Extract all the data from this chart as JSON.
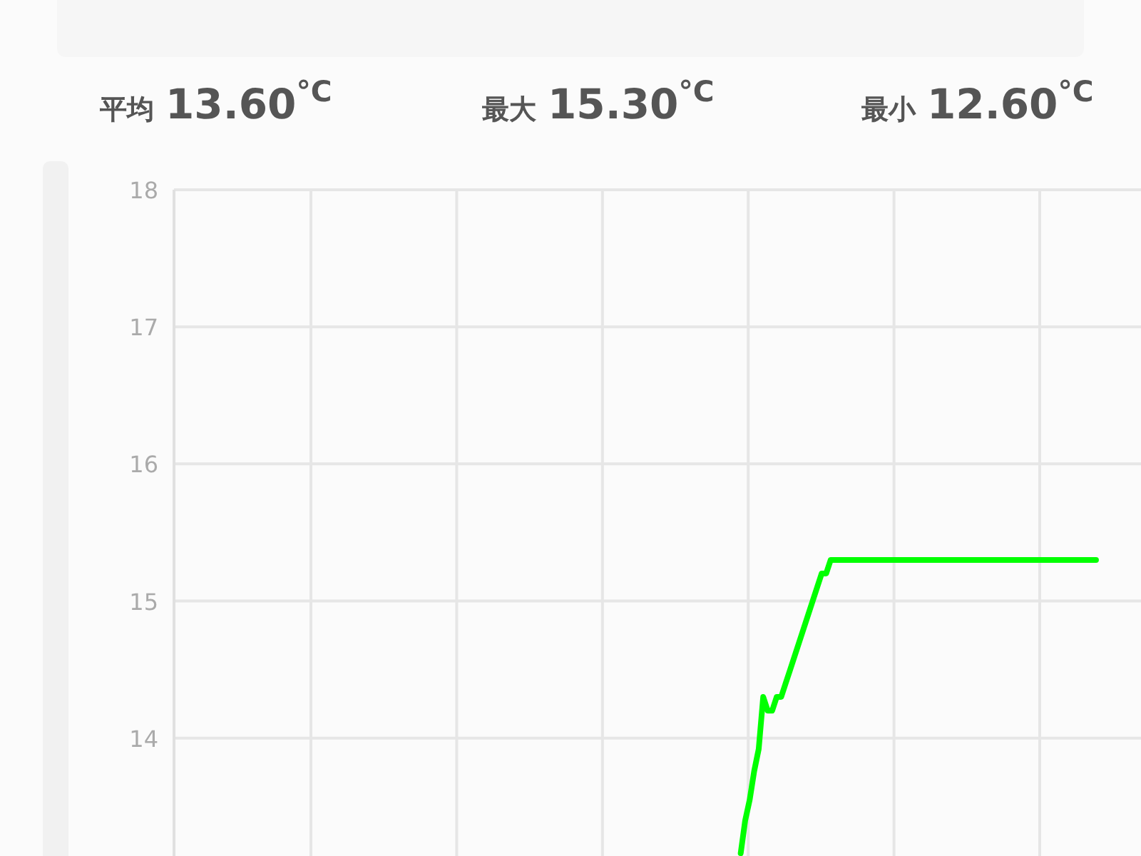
{
  "chart_data": {
    "type": "line",
    "annotations": [
      "平均 13.60$^{°C}$",
      "最大 15.30$^{°C}$",
      "最小 12.60$^{°C}$"
    ],
    "categories": [
      null,
      null,
      null,
      null,
      null,
      null,
      null,
      null,
      null,
      null,
      null,
      null,
      null,
      null,
      null,
      null,
      null,
      null,
      null,
      null,
      null,
      null,
      null,
      null,
      null,
      null,
      null,
      null,
      null,
      null,
      null,
      null,
      null,
      null,
      null,
      null,
      null,
      null,
      null,
      null,
      null,
      null,
      null,
      null,
      null,
      null,
      null,
      null,
      null,
      null,
      null,
      null,
      null,
      null,
      null,
      null,
      null,
      null,
      null,
      null,
      null,
      null,
      null,
      null,
      null,
      null,
      null,
      null,
      null,
      null,
      null,
      null,
      null,
      null,
      null,
      null,
      null,
      null,
      null,
      null,
      null,
      null,
      null,
      null,
      null,
      null,
      null,
      null,
      null,
      null,
      null,
      null,
      null,
      null,
      null,
      null,
      null,
      null,
      null,
      null,
      null,
      null,
      null,
      null,
      null,
      null,
      null,
      null,
      null,
      null,
      null,
      null,
      null,
      null,
      null,
      null,
      null,
      null,
      null,
      null,
      null,
      null,
      null,
      null,
      null,
      null,
      null,
      null,
      null,
      null,
      null,
      null,
      null,
      null,
      null,
      null,
      null,
      null,
      null,
      null,
      null,
      null,
      null,
      null,
      null,
      null,
      null,
      null,
      null,
      null,
      null,
      null,
      null,
      null,
      null,
      null,
      null,
      null,
      null,
      null,
      null,
      null,
      null,
      null,
      null,
      null,
      null,
      null,
      null,
      null,
      null,
      null,
      null,
      null,
      null,
      null,
      null,
      null,
      null,
      null,
      null,
      null,
      null,
      null,
      null,
      null,
      null,
      null,
      null,
      null,
      null,
      null,
      null,
      null,
      null,
      null,
      null,
      null,
      null,
      null,
      null,
      null,
      null,
      null,
      null,
      null,
      null,
      null,
      null,
      null,
      null,
      null,
      null,
      null,
      null,
      null
    ],
    "series": [
      {
        "color": "#00ff00",
        "values": [
          null,
          null,
          null,
          null,
          null,
          null,
          null,
          null,
          null,
          null,
          null,
          null,
          null,
          null,
          null,
          null,
          null,
          null,
          null,
          null,
          null,
          null,
          null,
          null,
          null,
          null,
          null,
          null,
          null,
          null,
          null,
          null,
          null,
          null,
          null,
          null,
          null,
          null,
          null,
          null,
          null,
          null,
          null,
          null,
          null,
          null,
          null,
          null,
          null,
          null,
          null,
          null,
          null,
          null,
          null,
          null,
          null,
          null,
          null,
          null,
          null,
          null,
          null,
          null,
          null,
          null,
          null,
          null,
          null,
          null,
          null,
          null,
          null,
          null,
          null,
          null,
          null,
          null,
          null,
          null,
          null,
          null,
          null,
          null,
          null,
          null,
          null,
          null,
          null,
          null,
          null,
          null,
          null,
          null,
          null,
          null,
          null,
          null,
          null,
          null,
          null,
          null,
          null,
          null,
          null,
          null,
          null,
          null,
          null,
          null,
          null,
          null,
          null,
          null,
          null,
          null,
          null,
          null,
          null,
          null,
          null,
          null,
          null,
          null,
          null,
          null,
          13.16,
          13.4,
          13.55,
          13.76,
          13.92,
          14.3,
          14.2,
          14.2,
          14.3,
          14.3,
          14.4,
          14.5,
          14.6,
          14.7,
          14.8,
          14.9,
          15.0,
          15.1,
          15.2,
          15.2,
          15.3,
          15.3,
          15.3,
          15.3,
          15.3,
          15.3,
          15.3,
          15.3,
          15.3,
          15.3,
          15.3,
          15.3,
          15.3,
          15.3,
          15.3,
          15.3,
          15.3,
          15.3,
          15.3,
          15.3,
          15.3,
          15.3,
          15.3,
          15.3,
          15.3,
          15.3,
          15.3,
          15.3,
          15.3,
          15.3,
          15.3,
          15.3,
          15.3,
          15.3,
          15.3,
          15.3,
          15.3,
          15.3,
          15.3,
          15.3,
          15.3,
          15.3,
          15.3,
          15.3,
          15.3,
          15.3,
          15.3,
          15.3,
          15.3,
          15.3,
          15.3,
          15.3,
          15.3,
          15.3,
          15.3,
          15.3,
          15.3,
          15.3,
          15.3,
          15.3,
          null,
          null,
          null,
          null,
          null,
          null,
          null,
          null,
          null,
          null
        ]
      }
    ],
    "ylim": [
      13.14,
      18
    ],
    "yticks": [
      14,
      15,
      16,
      17,
      18
    ],
    "grid": true,
    "marker": "none",
    "line_style": "solid"
  }
}
